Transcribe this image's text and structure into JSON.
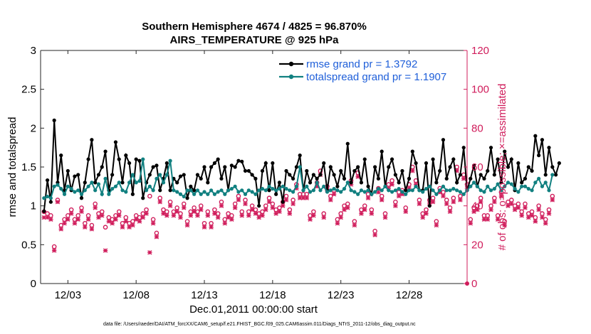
{
  "chart_data": {
    "type": "line",
    "title_line1": "Southern Hemisphere 4674 / 4825 = 96.870%",
    "title_line2": "AIRS_TEMPERATURE @ 925 hPa",
    "xlabel": "Dec.01,2011 00:00:00 start",
    "ylabel": "rmse and totalspread",
    "y2label": "# of obs: o=possible; ×=assimilated",
    "xlim": [
      1.0,
      32.25
    ],
    "ylim": [
      0,
      3
    ],
    "y2lim": [
      0,
      120
    ],
    "x_ticks": [
      {
        "value": 3,
        "label": "12/03"
      },
      {
        "value": 8,
        "label": "12/08"
      },
      {
        "value": 13,
        "label": "12/13"
      },
      {
        "value": 18,
        "label": "12/18"
      },
      {
        "value": 23,
        "label": "12/23"
      },
      {
        "value": 28,
        "label": "12/28"
      }
    ],
    "y_ticks": [
      {
        "value": 0,
        "label": "0"
      },
      {
        "value": 0.5,
        "label": "0.5"
      },
      {
        "value": 1,
        "label": "1"
      },
      {
        "value": 1.5,
        "label": "1.5"
      },
      {
        "value": 2,
        "label": "2"
      },
      {
        "value": 2.5,
        "label": "2.5"
      },
      {
        "value": 3,
        "label": "3"
      }
    ],
    "y2_ticks": [
      {
        "value": 0,
        "label": "0"
      },
      {
        "value": 20,
        "label": "20"
      },
      {
        "value": 40,
        "label": "40"
      },
      {
        "value": 60,
        "label": "60"
      },
      {
        "value": 80,
        "label": "80"
      },
      {
        "value": 100,
        "label": "100"
      },
      {
        "value": 120,
        "label": "120"
      }
    ],
    "x_start": 1.25,
    "x_step": 0.25,
    "series": [
      {
        "name": "rmse",
        "legend": "rmse grand pr = 1.3792",
        "color": "#000000",
        "values": [
          0.93,
          1.33,
          1.05,
          2.1,
          1.3,
          1.65,
          1.2,
          1.45,
          1.2,
          1.38,
          1.4,
          1.1,
          1.3,
          1.6,
          1.85,
          1.3,
          1.4,
          1.5,
          1.7,
          1.2,
          1.4,
          1.82,
          1.6,
          1.3,
          1.65,
          1.55,
          1.15,
          1.6,
          1.58,
          1.1,
          1.3,
          1.4,
          1.5,
          1.52,
          1.2,
          1.35,
          1.55,
          1.2,
          1.35,
          1.3,
          1.38,
          1.4,
          1.1,
          1.25,
          1.2,
          1.4,
          1.35,
          1.5,
          1.3,
          1.5,
          1.55,
          1.6,
          1.35,
          1.5,
          1.2,
          1.52,
          1.5,
          1.58,
          1.57,
          1.45,
          1.45,
          1.4,
          1.35,
          1.0,
          1.45,
          1.55,
          1.2,
          1.55,
          1.15,
          1.3,
          1.05,
          1.45,
          1.4,
          1.35,
          1.5,
          1.65,
          1.2,
          1.45,
          1.3,
          1.4,
          1.35,
          1.4,
          1.55,
          1.2,
          1.5,
          1.4,
          1.25,
          1.45,
          1.35,
          1.8,
          1.3,
          1.45,
          1.5,
          1.3,
          1.6,
          1.25,
          1.15,
          1.5,
          1.35,
          1.7,
          1.25,
          1.5,
          1.6,
          1.4,
          1.3,
          1.45,
          1.2,
          1.35,
          1.7,
          1.55,
          1.2,
          1.2,
          1.55,
          1.0,
          1.6,
          1.3,
          1.45,
          1.85,
          1.35,
          1.5,
          1.6,
          1.3,
          1.4,
          1.75,
          1.2,
          1.35,
          1.52,
          1.25,
          1.4,
          1.35,
          1.45,
          1.75,
          1.4,
          1.6,
          1.3,
          1.7,
          1.5,
          1.6,
          1.2,
          1.55,
          1.3,
          1.35,
          1.5,
          1.45,
          1.9,
          1.65,
          1.85,
          1.4,
          1.75,
          1.5,
          1.4,
          1.55
        ]
      },
      {
        "name": "totalspread",
        "legend": "totalspread grand pr = 1.1907",
        "color": "#118080",
        "values": [
          1.1,
          1.12,
          1.1,
          1.25,
          1.27,
          1.22,
          1.15,
          1.25,
          1.22,
          1.18,
          1.2,
          1.15,
          1.2,
          1.25,
          1.3,
          1.2,
          1.28,
          1.15,
          1.35,
          1.15,
          1.22,
          1.25,
          1.3,
          1.2,
          1.18,
          1.3,
          1.4,
          1.3,
          1.32,
          1.6,
          1.2,
          1.25,
          1.2,
          1.35,
          1.4,
          1.3,
          1.4,
          1.58,
          1.2,
          1.18,
          1.15,
          1.12,
          1.2,
          1.2,
          1.15,
          1.2,
          1.15,
          1.18,
          1.15,
          1.2,
          1.15,
          1.18,
          1.2,
          1.15,
          1.2,
          1.22,
          1.25,
          1.18,
          1.2,
          1.15,
          1.2,
          1.18,
          1.15,
          1.2,
          1.22,
          1.2,
          1.25,
          1.22,
          1.2,
          1.22,
          1.25,
          1.22,
          1.2,
          1.18,
          1.25,
          1.5,
          1.2,
          1.25,
          1.18,
          1.2,
          1.3,
          1.2,
          1.25,
          1.18,
          1.2,
          1.22,
          1.2,
          1.18,
          1.22,
          1.3,
          1.2,
          1.18,
          1.15,
          1.2,
          1.18,
          1.2,
          1.15,
          1.18,
          1.22,
          1.2,
          1.25,
          1.2,
          1.18,
          1.2,
          1.22,
          1.18,
          1.15,
          1.2,
          1.2,
          1.25,
          1.2,
          1.18,
          1.22,
          1.25,
          1.2,
          1.15,
          1.2,
          1.25,
          1.2,
          1.2,
          1.22,
          1.2,
          1.18,
          1.15,
          1.2,
          1.25,
          1.3,
          1.25,
          1.2,
          1.18,
          1.25,
          1.2,
          1.22,
          1.28,
          1.2,
          1.25,
          1.3,
          1.28,
          1.22,
          1.18,
          1.25,
          1.25,
          1.22,
          1.2,
          1.3,
          1.35,
          1.25,
          1.3,
          1.2,
          1.4
        ]
      },
      {
        "name": "obs possible",
        "legend": "",
        "color": "#d01c5b",
        "axis": "right",
        "marker": "circle",
        "values": [
          37,
          36,
          35,
          19,
          43,
          30,
          33,
          35,
          38,
          33,
          35,
          39,
          31,
          35,
          30,
          41,
          36,
          37,
          29,
          34,
          33,
          35,
          37,
          31,
          34,
          31,
          32,
          35,
          34,
          36,
          38,
          45,
          33,
          26,
          44,
          38,
          37,
          42,
          37,
          39,
          36,
          41,
          32,
          37,
          39,
          37,
          40,
          31,
          37,
          31,
          38,
          36,
          42,
          33,
          36,
          35,
          41,
          45,
          37,
          43,
          37,
          40,
          38,
          36,
          37,
          40,
          44,
          41,
          38,
          39,
          42,
          45,
          38,
          43,
          51,
          46,
          46,
          46,
          35,
          37,
          52,
          58,
          36,
          50,
          45,
          48,
          33,
          36,
          40,
          41,
          53,
          32,
          57,
          38,
          40,
          46,
          38,
          27,
          49,
          45,
          36,
          51,
          53,
          42,
          47,
          48,
          39,
          51,
          60,
          53,
          43,
          36,
          38,
          43,
          44,
          32,
          49,
          47,
          43,
          39,
          44,
          60,
          45,
          56,
          51,
          33,
          39,
          40,
          44,
          35,
          35,
          40,
          44,
          35,
          47,
          32,
          42,
          43,
          40,
          41,
          37,
          41,
          36,
          37,
          34,
          40,
          36,
          33,
          38,
          45
        ]
      },
      {
        "name": "obs assimilated",
        "legend": "",
        "color": "#d01c5b",
        "axis": "right",
        "marker": "star",
        "values": [
          34,
          34,
          33,
          17,
          42,
          28,
          31,
          33,
          36,
          31,
          33,
          37,
          29,
          33,
          28,
          39,
          34,
          35,
          17,
          32,
          31,
          33,
          35,
          29,
          32,
          29,
          30,
          33,
          32,
          34,
          36,
          16,
          31,
          24,
          42,
          36,
          35,
          40,
          35,
          37,
          34,
          39,
          30,
          35,
          37,
          35,
          38,
          29,
          35,
          29,
          36,
          34,
          40,
          31,
          34,
          33,
          39,
          43,
          35,
          41,
          35,
          38,
          36,
          34,
          35,
          38,
          42,
          39,
          36,
          37,
          40,
          43,
          36,
          41,
          49,
          44,
          44,
          44,
          33,
          35,
          50,
          56,
          34,
          48,
          43,
          46,
          31,
          34,
          38,
          39,
          51,
          30,
          55,
          36,
          38,
          44,
          36,
          25,
          47,
          43,
          34,
          49,
          51,
          40,
          45,
          46,
          37,
          49,
          58,
          51,
          41,
          34,
          36,
          41,
          42,
          30,
          47,
          45,
          41,
          37,
          42,
          58,
          43,
          54,
          49,
          31,
          37,
          38,
          42,
          33,
          33,
          38,
          42,
          33,
          45,
          30,
          40,
          41,
          38,
          39,
          35,
          39,
          34,
          35,
          32,
          38,
          34,
          31,
          36,
          43
        ]
      }
    ],
    "footnote": "data file: /Users/raeder/DAI/ATM_forcXX/CAM6_setup/f.e21.FHIST_BGC.f09_025.CAM6assim.011/Diags_NTrS_2011-12/obs_diag_output.nc"
  }
}
